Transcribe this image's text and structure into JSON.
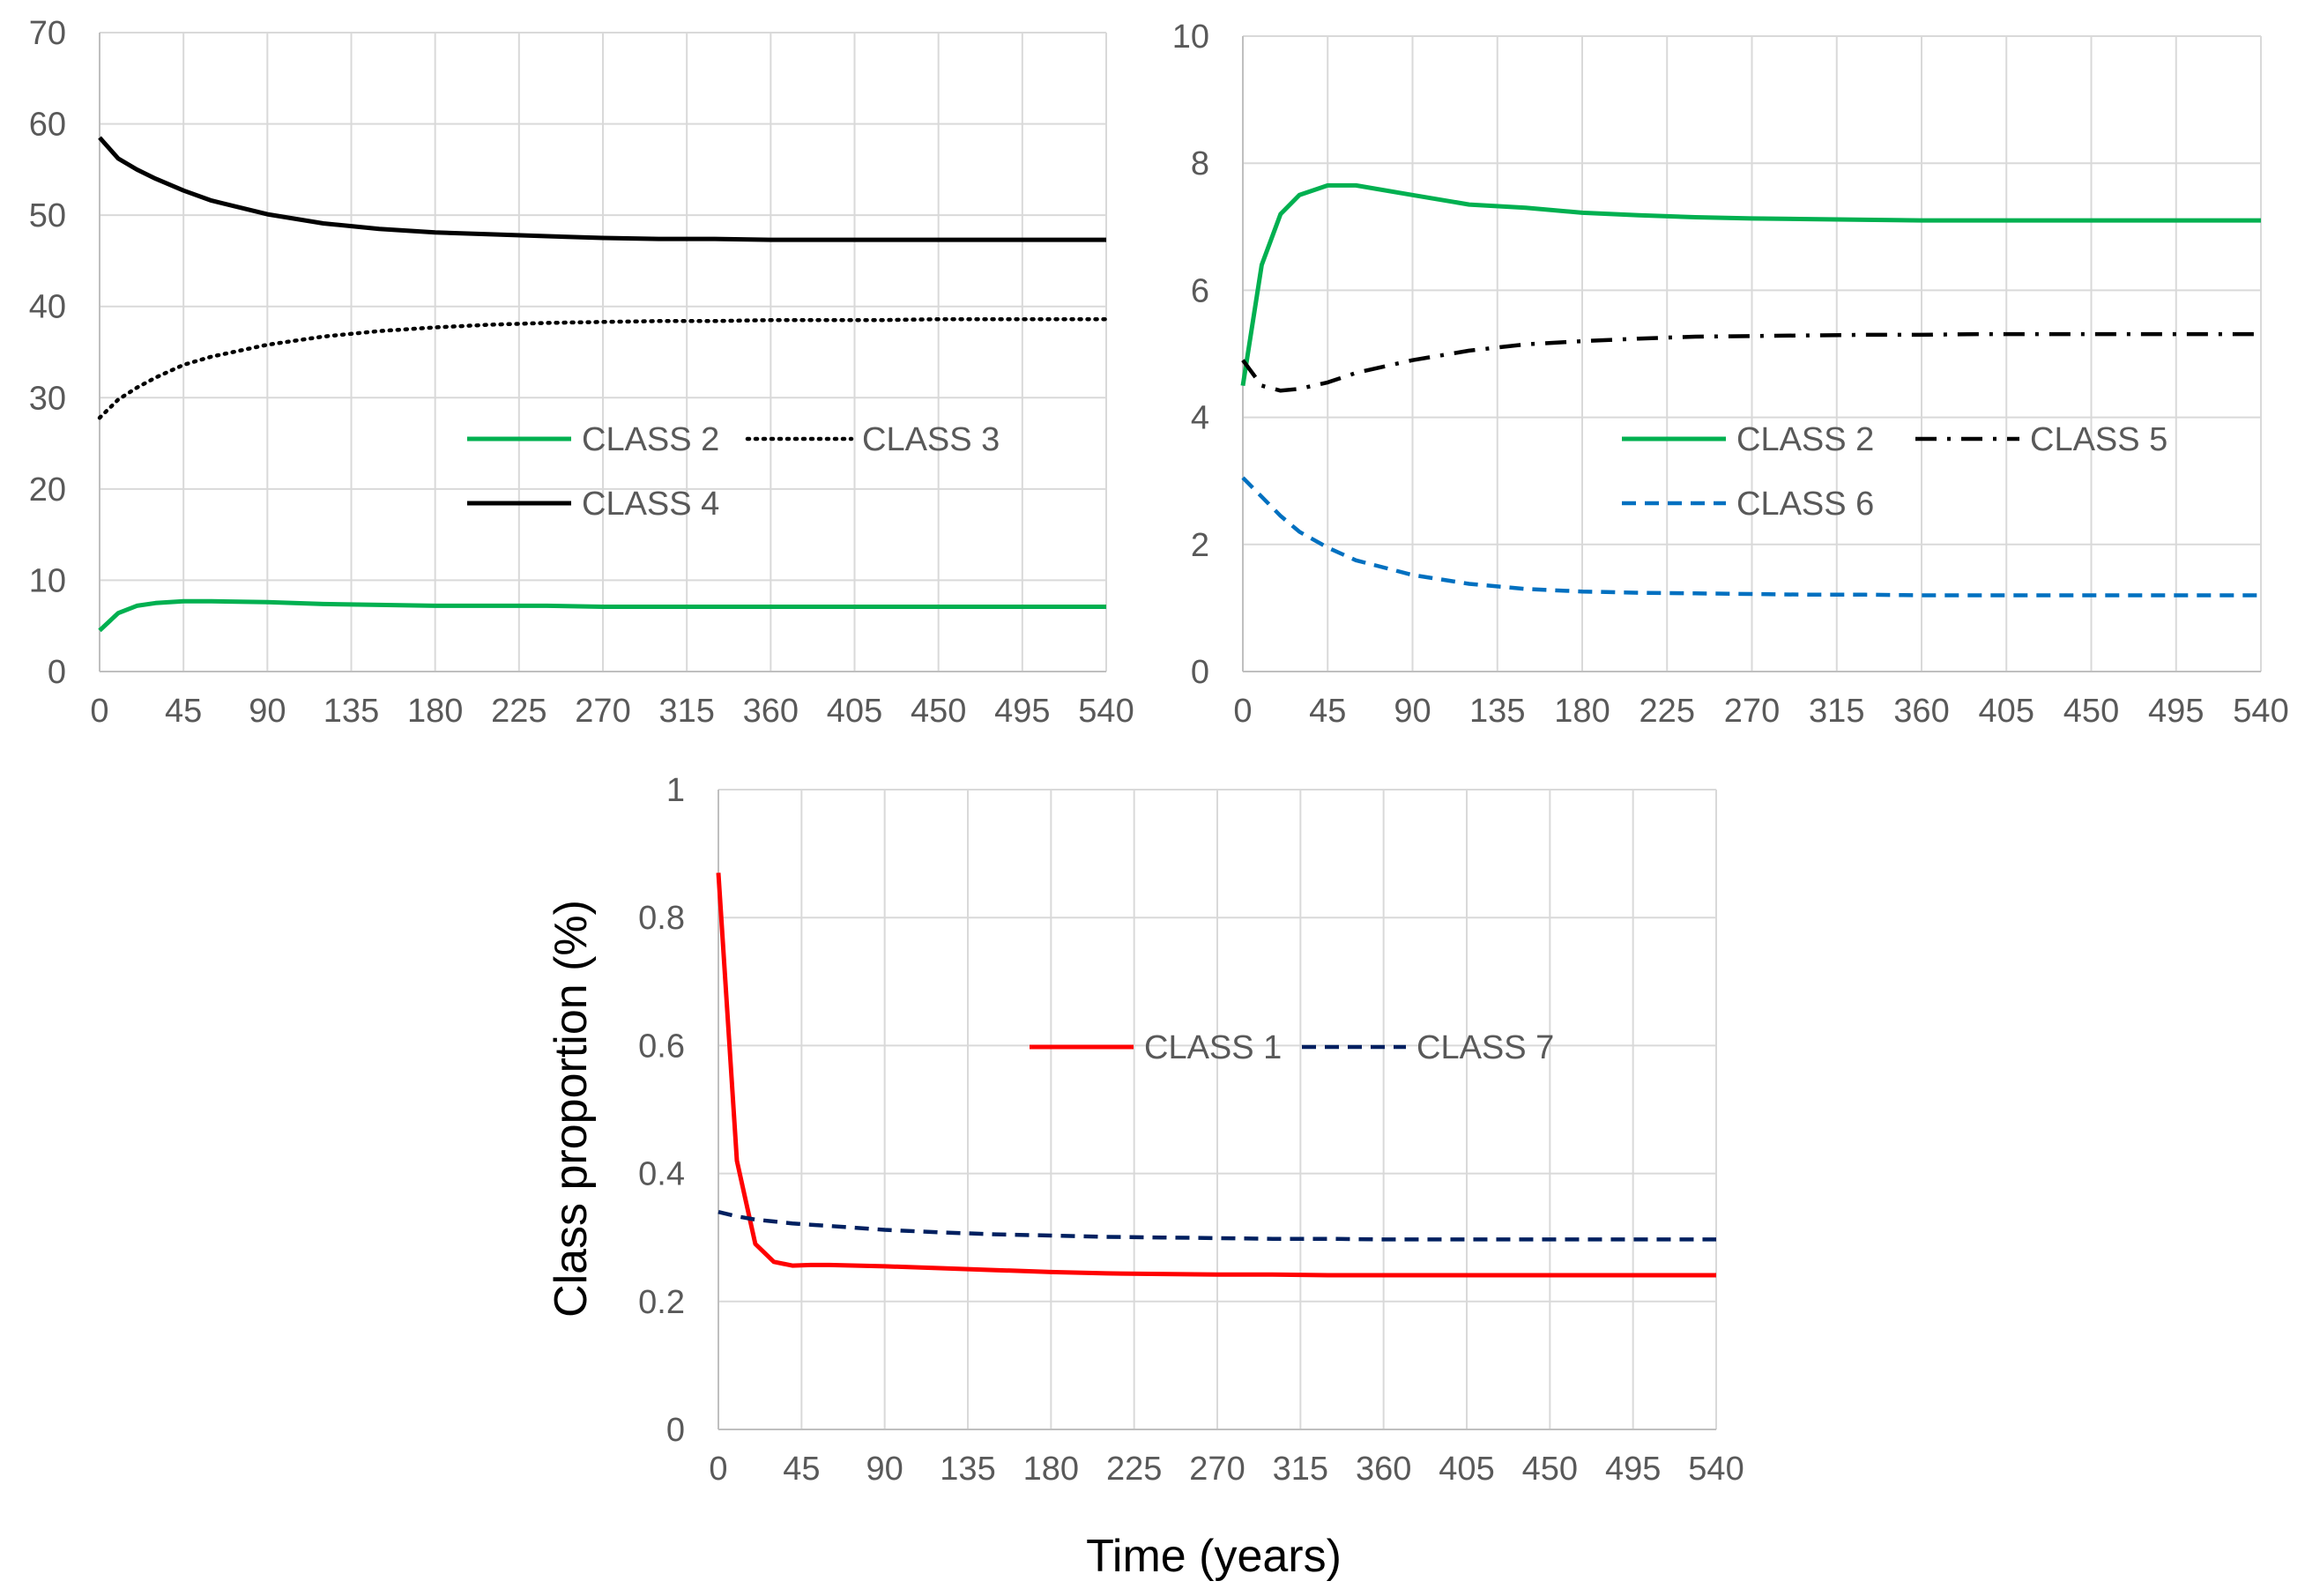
{
  "chart_data": [
    {
      "type": "line",
      "panel": "top-left",
      "title": "",
      "xlabel": "",
      "ylabel": "",
      "xlim": [
        0,
        540
      ],
      "ylim": [
        0,
        70
      ],
      "xticks": [
        0,
        45,
        90,
        135,
        180,
        225,
        270,
        315,
        360,
        405,
        450,
        495,
        540
      ],
      "yticks": [
        0,
        10,
        20,
        30,
        40,
        50,
        60,
        70
      ],
      "grid": true,
      "legend_position": "center-right",
      "x": [
        0,
        10,
        20,
        30,
        45,
        60,
        90,
        120,
        150,
        180,
        210,
        240,
        270,
        300,
        330,
        360,
        390,
        420,
        450,
        480,
        510,
        540
      ],
      "series": [
        {
          "name": "CLASS 2",
          "color": "#00b050",
          "dash": "solid",
          "values": [
            4.5,
            6.4,
            7.2,
            7.5,
            7.7,
            7.7,
            7.6,
            7.4,
            7.3,
            7.2,
            7.2,
            7.2,
            7.1,
            7.1,
            7.1,
            7.1,
            7.1,
            7.1,
            7.1,
            7.1,
            7.1,
            7.1
          ]
        },
        {
          "name": "CLASS 3",
          "color": "#000000",
          "dash": "dotted",
          "values": [
            27.8,
            29.8,
            31.1,
            32.2,
            33.6,
            34.5,
            35.8,
            36.7,
            37.3,
            37.7,
            38.0,
            38.2,
            38.3,
            38.4,
            38.4,
            38.5,
            38.5,
            38.5,
            38.6,
            38.6,
            38.6,
            38.6
          ]
        },
        {
          "name": "CLASS 4",
          "color": "#000000",
          "dash": "solid",
          "values": [
            58.5,
            56.2,
            55.0,
            54.0,
            52.7,
            51.6,
            50.1,
            49.1,
            48.5,
            48.1,
            47.9,
            47.7,
            47.5,
            47.4,
            47.4,
            47.3,
            47.3,
            47.3,
            47.3,
            47.3,
            47.3,
            47.3
          ]
        }
      ]
    },
    {
      "type": "line",
      "panel": "top-right",
      "title": "",
      "xlabel": "",
      "ylabel": "",
      "xlim": [
        0,
        540
      ],
      "ylim": [
        0,
        10
      ],
      "xticks": [
        0,
        45,
        90,
        135,
        180,
        225,
        270,
        315,
        360,
        405,
        450,
        495,
        540
      ],
      "yticks": [
        0,
        2,
        4,
        6,
        8,
        10
      ],
      "grid": true,
      "legend_position": "center-right",
      "x": [
        0,
        10,
        20,
        30,
        45,
        60,
        90,
        120,
        150,
        180,
        210,
        240,
        270,
        300,
        330,
        360,
        390,
        420,
        450,
        480,
        510,
        540
      ],
      "series": [
        {
          "name": "CLASS 2",
          "color": "#00b050",
          "dash": "solid",
          "values": [
            4.5,
            6.4,
            7.2,
            7.5,
            7.65,
            7.65,
            7.5,
            7.35,
            7.3,
            7.22,
            7.18,
            7.15,
            7.13,
            7.12,
            7.11,
            7.1,
            7.1,
            7.1,
            7.1,
            7.1,
            7.1,
            7.1
          ]
        },
        {
          "name": "CLASS 5",
          "color": "#000000",
          "dash": "dashdot",
          "values": [
            4.9,
            4.5,
            4.42,
            4.45,
            4.55,
            4.7,
            4.9,
            5.05,
            5.15,
            5.2,
            5.24,
            5.27,
            5.28,
            5.29,
            5.3,
            5.3,
            5.31,
            5.31,
            5.31,
            5.31,
            5.31,
            5.31
          ]
        },
        {
          "name": "CLASS 6",
          "color": "#0070c0",
          "dash": "dashed",
          "values": [
            3.05,
            2.75,
            2.45,
            2.2,
            1.95,
            1.75,
            1.52,
            1.38,
            1.3,
            1.26,
            1.24,
            1.23,
            1.22,
            1.21,
            1.21,
            1.2,
            1.2,
            1.2,
            1.2,
            1.2,
            1.2,
            1.2
          ]
        }
      ]
    },
    {
      "type": "line",
      "panel": "bottom-center",
      "title": "",
      "xlabel": "Time (years)",
      "ylabel": "Class proportion (%)",
      "xlim": [
        0,
        540
      ],
      "ylim": [
        0,
        1
      ],
      "xticks": [
        0,
        45,
        90,
        135,
        180,
        225,
        270,
        315,
        360,
        405,
        450,
        495,
        540
      ],
      "yticks": [
        0,
        0.2,
        0.4,
        0.6,
        0.8,
        1
      ],
      "grid": true,
      "legend_position": "center",
      "x": [
        0,
        10,
        20,
        30,
        40,
        50,
        60,
        90,
        120,
        150,
        180,
        210,
        240,
        270,
        300,
        330,
        360,
        390,
        420,
        450,
        480,
        510,
        540
      ],
      "series": [
        {
          "name": "CLASS 1",
          "color": "#ff0000",
          "dash": "solid",
          "values": [
            0.87,
            0.42,
            0.29,
            0.262,
            0.256,
            0.257,
            0.257,
            0.255,
            0.252,
            0.249,
            0.246,
            0.244,
            0.243,
            0.242,
            0.242,
            0.241,
            0.241,
            0.241,
            0.241,
            0.241,
            0.241,
            0.241,
            0.241
          ]
        },
        {
          "name": "CLASS 7",
          "color": "#002060",
          "dash": "dashed",
          "values": [
            0.34,
            0.333,
            0.328,
            0.325,
            0.322,
            0.32,
            0.318,
            0.312,
            0.308,
            0.305,
            0.303,
            0.301,
            0.3,
            0.299,
            0.298,
            0.298,
            0.297,
            0.297,
            0.297,
            0.297,
            0.297,
            0.297,
            0.297
          ]
        }
      ]
    }
  ]
}
